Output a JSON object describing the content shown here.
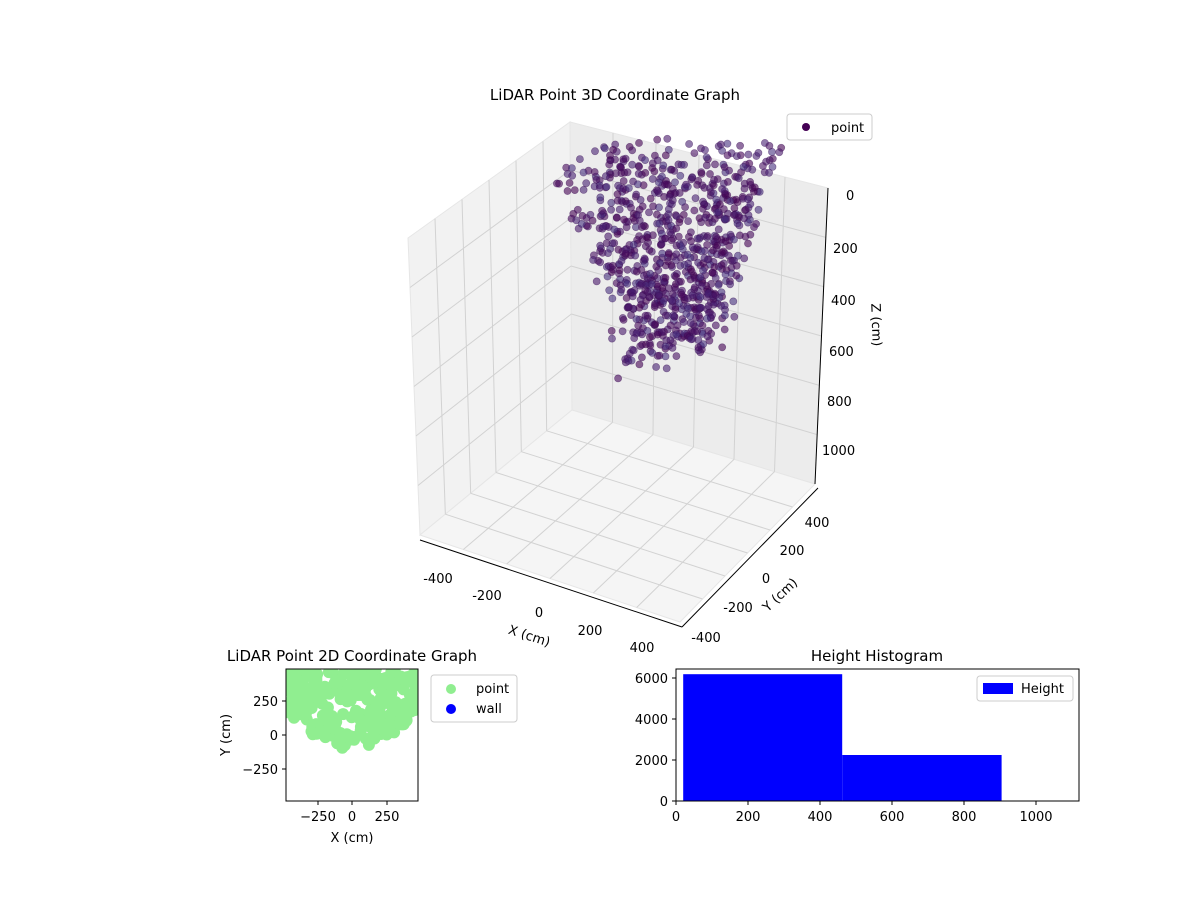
{
  "chart_data": [
    {
      "type": "scatter",
      "projection": "3d",
      "title": "LiDAR Point 3D Coordinate Graph",
      "xlabel": "X (cm)",
      "ylabel": "Y (cm)",
      "zlabel": "Z (cm)",
      "xlim": [
        -500,
        500
      ],
      "ylim": [
        -500,
        500
      ],
      "zlim": [
        1100,
        0
      ],
      "xticks": [
        "-400",
        "-200",
        "0",
        "200",
        "400"
      ],
      "yticks": [
        "-400",
        "-200",
        "0",
        "200",
        "400"
      ],
      "zticks": [
        "0",
        "200",
        "400",
        "600",
        "800",
        "1000"
      ],
      "grid": true,
      "legend": {
        "position": "top-right",
        "entries": [
          {
            "label": "point",
            "color": "#440154"
          }
        ]
      },
      "colormap": "viridis",
      "point_alpha": 0.6,
      "shape": {
        "description": "dense bowl-shaped cloud of scan rings",
        "x_range": [
          -450,
          450
        ],
        "y_range": [
          -100,
          450
        ],
        "z_range": [
          0,
          900
        ]
      }
    },
    {
      "type": "scatter",
      "title": "LiDAR Point 2D Coordinate Graph",
      "xlabel": "X (cm)",
      "ylabel": "Y (cm)",
      "xlim": [
        -480,
        480
      ],
      "ylim": [
        -480,
        480
      ],
      "xticks": [
        "−250",
        "0",
        "250"
      ],
      "yticks": [
        "−250",
        "0",
        "250"
      ],
      "legend": {
        "position": "outside-right",
        "entries": [
          {
            "label": "point",
            "color": "#90ee90"
          },
          {
            "label": "wall",
            "color": "#0000ff"
          }
        ]
      },
      "series": [
        {
          "name": "point",
          "color": "#90ee90",
          "region": {
            "x_range": [
              -470,
              470
            ],
            "y_range": [
              -100,
              480
            ]
          }
        },
        {
          "name": "wall",
          "color": "#0000ff",
          "points": []
        }
      ]
    },
    {
      "type": "bar",
      "subtype": "histogram",
      "title": "Height Histogram",
      "xlim": [
        0,
        1120
      ],
      "ylim": [
        0,
        6400
      ],
      "xticks": [
        "0",
        "200",
        "400",
        "600",
        "800",
        "1000"
      ],
      "yticks": [
        "0",
        "2000",
        "4000",
        "6000"
      ],
      "legend": {
        "position": "top-right",
        "entries": [
          {
            "label": "Height",
            "color": "#0000ff"
          }
        ]
      },
      "bins": [
        {
          "x0": 20,
          "x1": 462,
          "count": 6150
        },
        {
          "x0": 462,
          "x1": 905,
          "count": 2230
        },
        {
          "x0": 905,
          "x1": 1100,
          "count": 0
        }
      ]
    }
  ]
}
